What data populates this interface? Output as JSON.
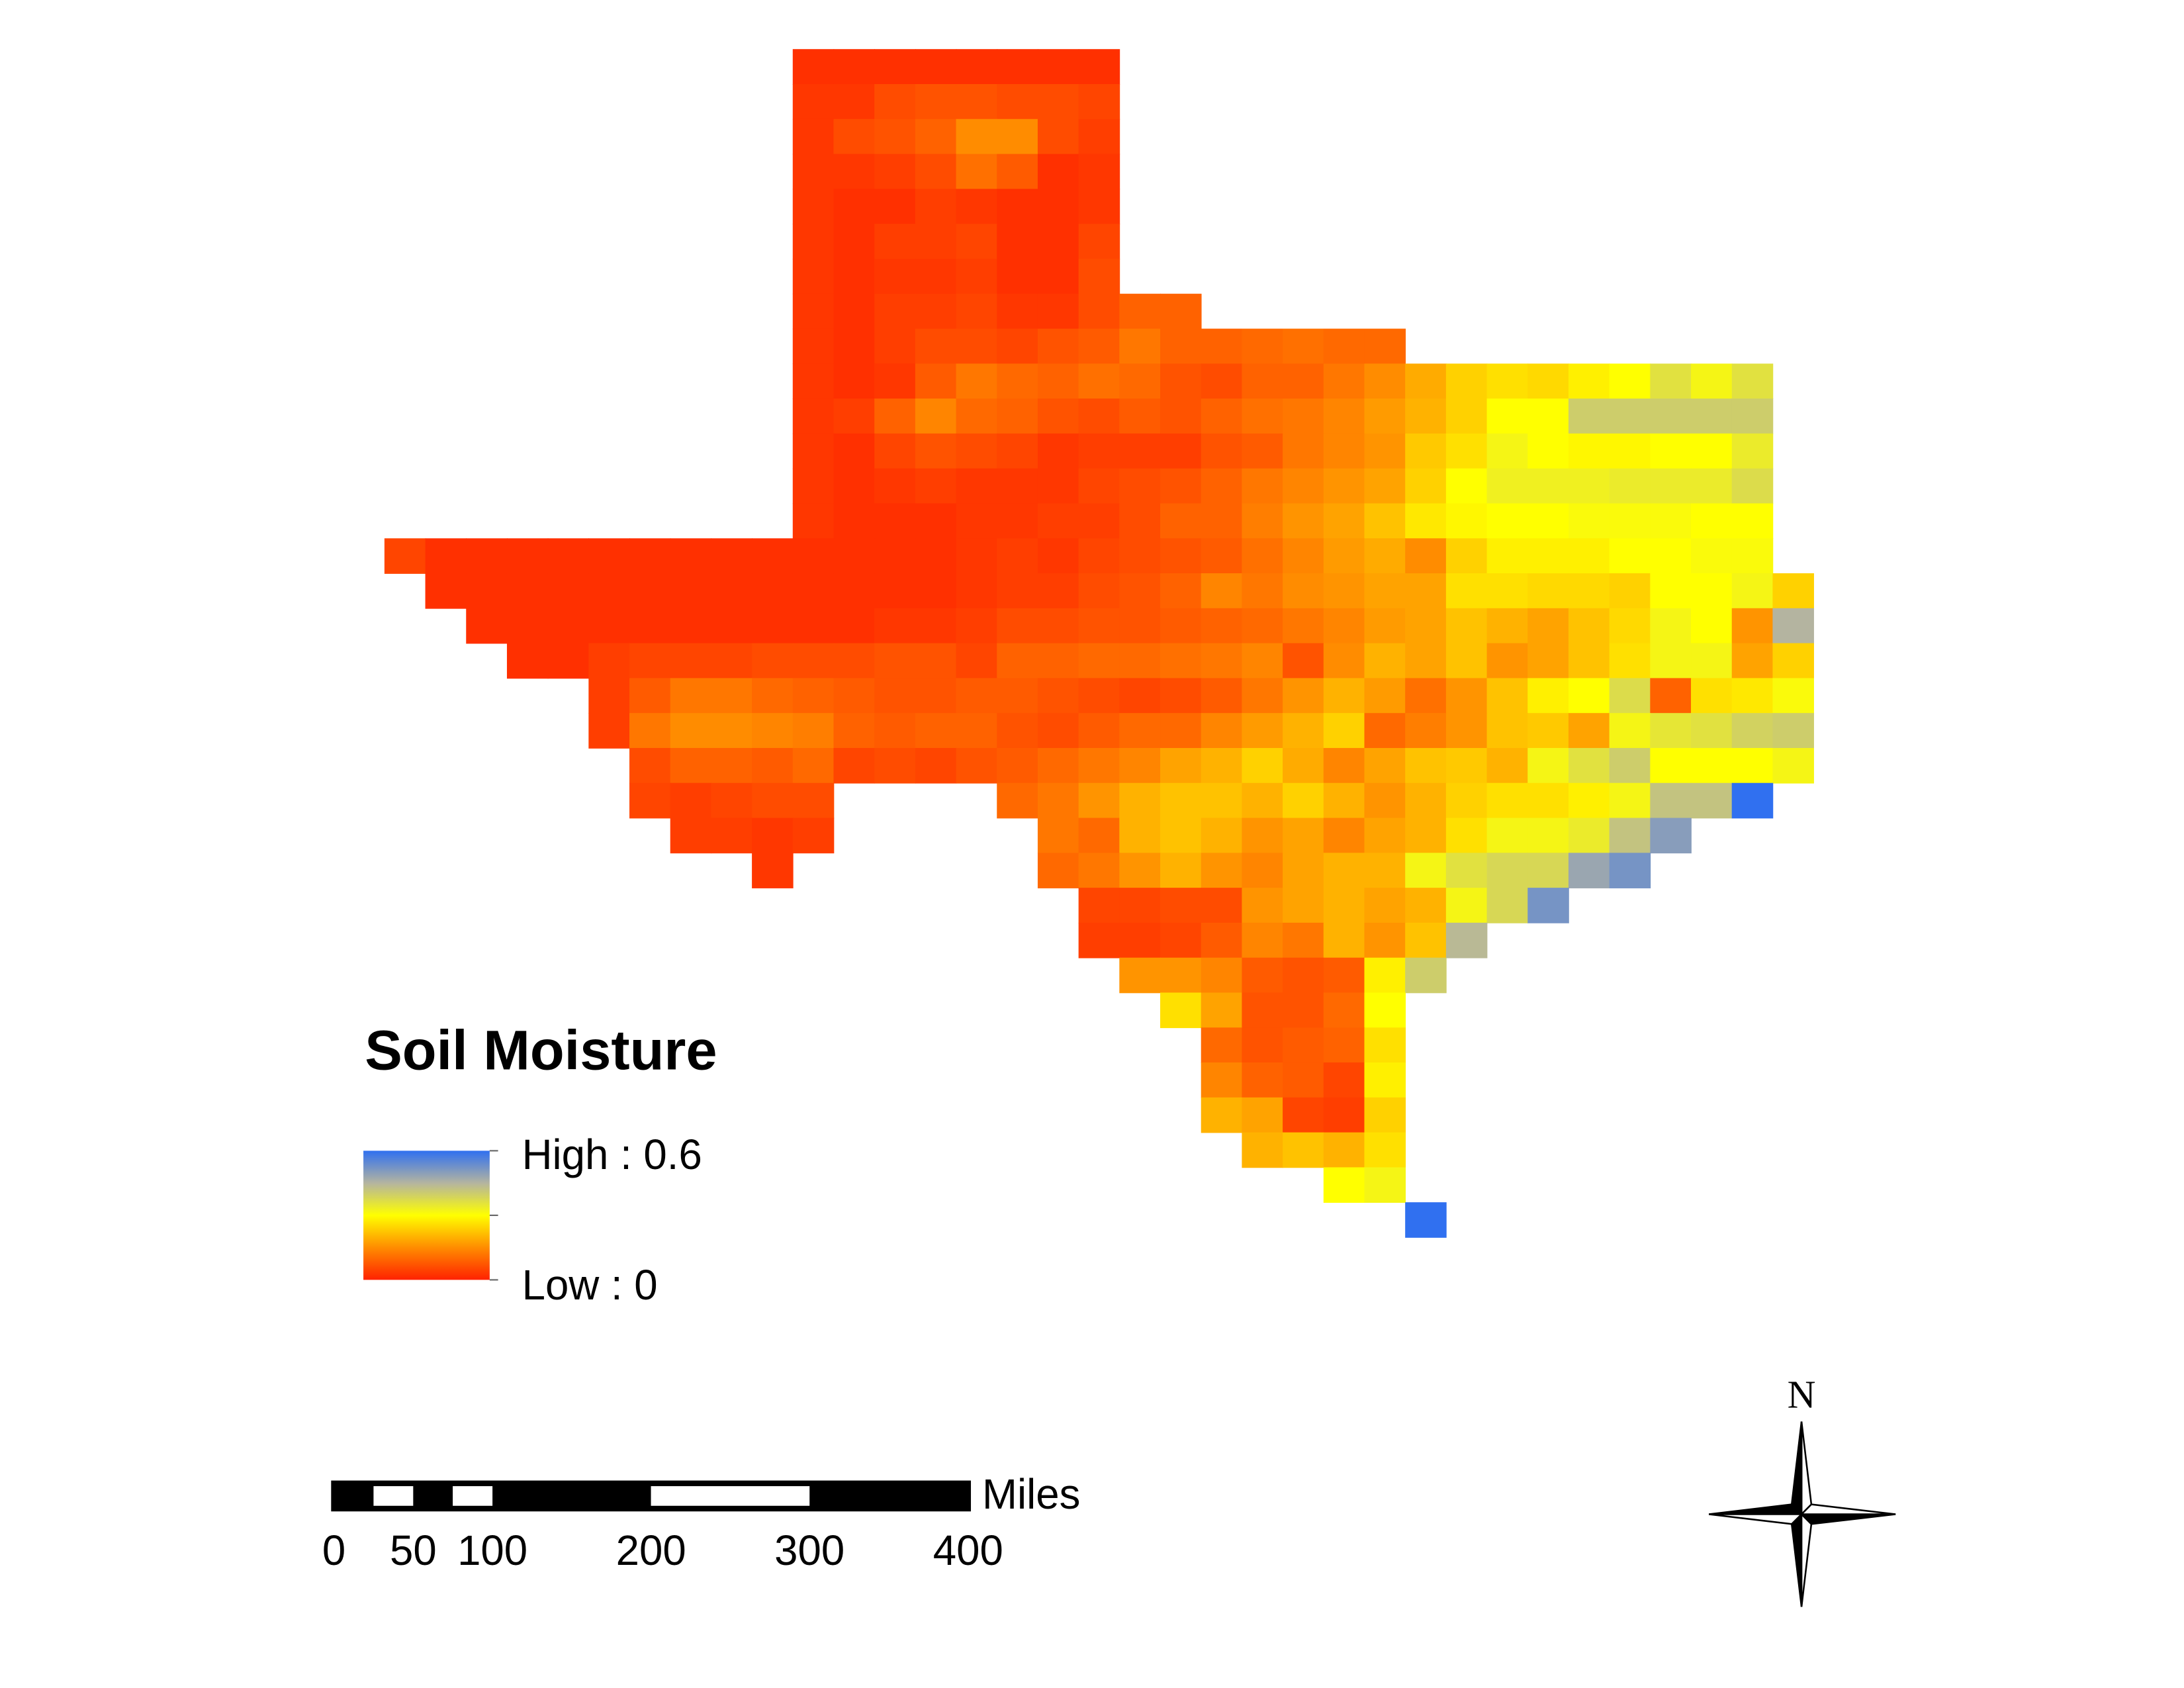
{
  "map": {
    "grid": [
      [
        null,
        null,
        null,
        null,
        null,
        null,
        null,
        null,
        null,
        null,
        0.02,
        0.02,
        0.02,
        0.02,
        0.02,
        0.02,
        0.02,
        0.02,
        null,
        null,
        null,
        null,
        null,
        null,
        null,
        null,
        null,
        null,
        null,
        null,
        null,
        null,
        null,
        null,
        null
      ],
      [
        null,
        null,
        null,
        null,
        null,
        null,
        null,
        null,
        null,
        null,
        0.03,
        0.03,
        0.06,
        0.07,
        0.07,
        0.06,
        0.06,
        0.05,
        null,
        null,
        null,
        null,
        null,
        null,
        null,
        null,
        null,
        null,
        null,
        null,
        null,
        null,
        null,
        null,
        null
      ],
      [
        null,
        null,
        null,
        null,
        null,
        null,
        null,
        null,
        null,
        null,
        0.03,
        0.06,
        0.07,
        0.09,
        0.15,
        0.15,
        0.06,
        0.04,
        null,
        null,
        null,
        null,
        null,
        null,
        null,
        null,
        null,
        null,
        null,
        null,
        null,
        null,
        null,
        null,
        null
      ],
      [
        null,
        null,
        null,
        null,
        null,
        null,
        null,
        null,
        null,
        null,
        0.03,
        0.03,
        0.04,
        0.06,
        0.11,
        0.08,
        0.02,
        0.03,
        null,
        null,
        null,
        null,
        null,
        null,
        null,
        null,
        null,
        null,
        null,
        null,
        null,
        null,
        null,
        null,
        null
      ],
      [
        null,
        null,
        null,
        null,
        null,
        null,
        null,
        null,
        null,
        null,
        0.03,
        0.02,
        0.02,
        0.04,
        0.03,
        0.02,
        0.02,
        0.03,
        null,
        null,
        null,
        null,
        null,
        null,
        null,
        null,
        null,
        null,
        null,
        null,
        null,
        null,
        null,
        null,
        null
      ],
      [
        null,
        null,
        null,
        null,
        null,
        null,
        null,
        null,
        null,
        null,
        0.03,
        0.02,
        0.04,
        0.04,
        0.05,
        0.02,
        0.02,
        0.05,
        null,
        null,
        null,
        null,
        null,
        null,
        null,
        null,
        null,
        null,
        null,
        null,
        null,
        null,
        null,
        null,
        null
      ],
      [
        null,
        null,
        null,
        null,
        null,
        null,
        null,
        null,
        null,
        null,
        0.03,
        0.02,
        0.03,
        0.03,
        0.04,
        0.02,
        0.02,
        0.06,
        null,
        null,
        null,
        null,
        null,
        null,
        null,
        null,
        null,
        null,
        null,
        null,
        null,
        null,
        null,
        null,
        null
      ],
      [
        null,
        null,
        null,
        null,
        null,
        null,
        null,
        null,
        null,
        null,
        0.03,
        0.02,
        0.04,
        0.04,
        0.05,
        0.03,
        0.03,
        0.06,
        0.09,
        0.09,
        null,
        null,
        null,
        null,
        null,
        null,
        null,
        null,
        null,
        null,
        null,
        null,
        null,
        null,
        null
      ],
      [
        null,
        null,
        null,
        null,
        null,
        null,
        null,
        null,
        null,
        null,
        0.03,
        0.02,
        0.04,
        0.06,
        0.06,
        0.05,
        0.07,
        0.08,
        0.12,
        0.09,
        0.09,
        0.1,
        0.11,
        0.1,
        0.1,
        null,
        null,
        null,
        null,
        null,
        null,
        null,
        null,
        null,
        null
      ],
      [
        null,
        null,
        null,
        null,
        null,
        null,
        null,
        null,
        null,
        null,
        0.03,
        0.02,
        0.03,
        0.08,
        0.12,
        0.1,
        0.09,
        0.11,
        0.1,
        0.07,
        0.06,
        0.09,
        0.09,
        0.12,
        0.15,
        0.19,
        0.24,
        0.26,
        0.25,
        0.28,
        0.3,
        0.36,
        0.32,
        0.36,
        null
      ],
      [
        null,
        null,
        null,
        null,
        null,
        null,
        null,
        null,
        null,
        null,
        0.03,
        0.04,
        0.09,
        0.14,
        0.1,
        0.09,
        0.07,
        0.06,
        0.08,
        0.07,
        0.09,
        0.11,
        0.12,
        0.14,
        0.17,
        0.2,
        0.24,
        0.3,
        0.3,
        0.4,
        0.4,
        0.4,
        0.4,
        0.4,
        null
      ],
      [
        null,
        null,
        null,
        null,
        null,
        null,
        null,
        null,
        null,
        null,
        0.03,
        0.02,
        0.05,
        0.07,
        0.06,
        0.05,
        0.03,
        0.04,
        0.04,
        0.04,
        0.07,
        0.08,
        0.12,
        0.14,
        0.16,
        0.23,
        0.26,
        0.32,
        0.3,
        0.29,
        0.29,
        0.3,
        0.3,
        0.34,
        null
      ],
      [
        null,
        null,
        null,
        null,
        null,
        null,
        null,
        null,
        null,
        null,
        0.03,
        0.02,
        0.03,
        0.04,
        0.03,
        0.03,
        0.03,
        0.05,
        0.06,
        0.07,
        0.09,
        0.12,
        0.14,
        0.16,
        0.18,
        0.24,
        0.3,
        0.33,
        0.33,
        0.33,
        0.34,
        0.34,
        0.34,
        0.37,
        null
      ],
      [
        null,
        null,
        null,
        null,
        null,
        null,
        null,
        null,
        null,
        null,
        0.03,
        0.02,
        0.02,
        0.02,
        0.03,
        0.03,
        0.04,
        0.04,
        0.06,
        0.09,
        0.09,
        0.13,
        0.16,
        0.18,
        0.22,
        0.27,
        0.29,
        0.3,
        0.3,
        0.31,
        0.31,
        0.31,
        0.3,
        0.3,
        null
      ],
      [
        0.05,
        0.02,
        0.02,
        0.02,
        0.02,
        0.02,
        0.02,
        0.02,
        0.02,
        0.02,
        0.02,
        0.02,
        0.02,
        0.02,
        0.03,
        0.04,
        0.03,
        0.05,
        0.06,
        0.07,
        0.08,
        0.11,
        0.14,
        0.17,
        0.19,
        0.15,
        0.24,
        0.28,
        0.28,
        0.28,
        0.3,
        0.3,
        0.31,
        0.31,
        null
      ],
      [
        null,
        0.02,
        0.02,
        0.02,
        0.02,
        0.02,
        0.02,
        0.02,
        0.02,
        0.02,
        0.02,
        0.02,
        0.02,
        0.02,
        0.03,
        0.04,
        0.04,
        0.06,
        0.07,
        0.09,
        0.14,
        0.12,
        0.15,
        0.16,
        0.18,
        0.18,
        0.26,
        0.26,
        0.25,
        0.25,
        0.24,
        0.3,
        0.3,
        0.32,
        0.24
      ],
      [
        null,
        null,
        0.02,
        0.02,
        0.02,
        0.02,
        0.02,
        0.02,
        0.02,
        0.02,
        0.02,
        0.02,
        0.03,
        0.03,
        0.04,
        0.06,
        0.06,
        0.07,
        0.07,
        0.08,
        0.09,
        0.1,
        0.12,
        0.14,
        0.17,
        0.18,
        0.22,
        0.2,
        0.18,
        0.22,
        0.25,
        0.32,
        0.3,
        0.16,
        0.45
      ],
      [
        null,
        null,
        null,
        0.02,
        0.02,
        0.04,
        0.05,
        0.05,
        0.05,
        0.06,
        0.06,
        0.06,
        0.07,
        0.07,
        0.05,
        0.09,
        0.09,
        0.1,
        0.1,
        0.11,
        0.12,
        0.14,
        0.07,
        0.15,
        0.2,
        0.18,
        0.22,
        0.16,
        0.18,
        0.22,
        0.26,
        0.32,
        0.32,
        0.18,
        0.24
      ],
      [
        null,
        null,
        null,
        null,
        null,
        0.04,
        0.08,
        0.12,
        0.12,
        0.1,
        0.09,
        0.08,
        0.07,
        0.07,
        0.08,
        0.08,
        0.07,
        0.06,
        0.05,
        0.06,
        0.08,
        0.12,
        0.16,
        0.2,
        0.17,
        0.11,
        0.16,
        0.22,
        0.28,
        0.3,
        0.37,
        0.09,
        0.26,
        0.27,
        0.31
      ],
      [
        null,
        null,
        null,
        null,
        null,
        0.04,
        0.12,
        0.15,
        0.15,
        0.14,
        0.13,
        0.09,
        0.08,
        0.09,
        0.09,
        0.07,
        0.06,
        0.08,
        0.1,
        0.1,
        0.14,
        0.17,
        0.2,
        0.24,
        0.1,
        0.13,
        0.16,
        0.22,
        0.23,
        0.18,
        0.32,
        0.35,
        0.36,
        0.39,
        0.4
      ],
      [
        null,
        null,
        null,
        null,
        null,
        null,
        0.06,
        0.09,
        0.09,
        0.08,
        0.1,
        0.05,
        0.06,
        0.05,
        0.07,
        0.08,
        0.1,
        0.12,
        0.14,
        0.18,
        0.2,
        0.24,
        0.19,
        0.14,
        0.18,
        0.22,
        0.23,
        0.2,
        0.32,
        0.36,
        0.4,
        0.3,
        0.3,
        0.3,
        0.32
      ],
      [
        null,
        null,
        null,
        null,
        null,
        null,
        0.05,
        0.04,
        0.05,
        0.06,
        0.06,
        null,
        null,
        null,
        null,
        0.1,
        0.12,
        0.16,
        0.2,
        0.22,
        0.22,
        0.2,
        0.24,
        0.2,
        0.16,
        0.2,
        0.24,
        0.26,
        0.26,
        0.28,
        0.32,
        0.42,
        0.42,
        0.6,
        null
      ],
      [
        null,
        null,
        null,
        null,
        null,
        null,
        null,
        0.04,
        0.04,
        0.03,
        0.04,
        null,
        null,
        null,
        null,
        null,
        0.12,
        0.1,
        0.2,
        0.22,
        0.2,
        0.16,
        0.18,
        0.14,
        0.18,
        0.2,
        0.26,
        0.32,
        0.32,
        0.34,
        0.42,
        0.5,
        null,
        null,
        null
      ],
      [
        null,
        null,
        null,
        null,
        null,
        null,
        null,
        null,
        null,
        0.03,
        null,
        null,
        null,
        null,
        null,
        null,
        0.1,
        0.12,
        0.16,
        0.2,
        0.16,
        0.14,
        0.18,
        0.2,
        0.2,
        0.32,
        0.36,
        0.38,
        0.38,
        0.48,
        0.52,
        null,
        null,
        null,
        null
      ],
      [
        null,
        null,
        null,
        null,
        null,
        null,
        null,
        null,
        null,
        null,
        null,
        null,
        null,
        null,
        null,
        null,
        null,
        0.05,
        0.05,
        0.06,
        0.06,
        0.16,
        0.18,
        0.2,
        0.18,
        0.2,
        0.32,
        0.38,
        0.52,
        null,
        null,
        null,
        null,
        null,
        null
      ],
      [
        null,
        null,
        null,
        null,
        null,
        null,
        null,
        null,
        null,
        null,
        null,
        null,
        null,
        null,
        null,
        null,
        null,
        0.04,
        0.04,
        0.05,
        0.08,
        0.14,
        0.12,
        0.2,
        0.16,
        0.22,
        0.44,
        null,
        null,
        null,
        null,
        null,
        null,
        null,
        null
      ],
      [
        null,
        null,
        null,
        null,
        null,
        null,
        null,
        null,
        null,
        null,
        null,
        null,
        null,
        null,
        null,
        null,
        null,
        null,
        0.16,
        0.16,
        0.14,
        0.08,
        0.07,
        0.08,
        0.28,
        0.4,
        null,
        null,
        null,
        null,
        null,
        null,
        null,
        null,
        null
      ],
      [
        null,
        null,
        null,
        null,
        null,
        null,
        null,
        null,
        null,
        null,
        null,
        null,
        null,
        null,
        null,
        null,
        null,
        null,
        null,
        0.26,
        0.18,
        0.07,
        0.07,
        0.1,
        0.3,
        null,
        null,
        null,
        null,
        null,
        null,
        null,
        null,
        null,
        null
      ],
      [
        null,
        null,
        null,
        null,
        null,
        null,
        null,
        null,
        null,
        null,
        null,
        null,
        null,
        null,
        null,
        null,
        null,
        null,
        null,
        null,
        0.1,
        0.07,
        0.08,
        0.09,
        0.26,
        null,
        null,
        null,
        null,
        null,
        null,
        null,
        null,
        null,
        null
      ],
      [
        null,
        null,
        null,
        null,
        null,
        null,
        null,
        null,
        null,
        null,
        null,
        null,
        null,
        null,
        null,
        null,
        null,
        null,
        null,
        null,
        0.14,
        0.09,
        0.08,
        0.05,
        0.28,
        null,
        null,
        null,
        null,
        null,
        null,
        null,
        null,
        null,
        null
      ],
      [
        null,
        null,
        null,
        null,
        null,
        null,
        null,
        null,
        null,
        null,
        null,
        null,
        null,
        null,
        null,
        null,
        null,
        null,
        null,
        null,
        0.2,
        0.18,
        0.05,
        0.04,
        0.24,
        null,
        null,
        null,
        null,
        null,
        null,
        null,
        null,
        null,
        null
      ],
      [
        null,
        null,
        null,
        null,
        null,
        null,
        null,
        null,
        null,
        null,
        null,
        null,
        null,
        null,
        null,
        null,
        null,
        null,
        null,
        null,
        null,
        0.2,
        0.22,
        0.2,
        0.26,
        null,
        null,
        null,
        null,
        null,
        null,
        null,
        null,
        null,
        null
      ],
      [
        null,
        null,
        null,
        null,
        null,
        null,
        null,
        null,
        null,
        null,
        null,
        null,
        null,
        null,
        null,
        null,
        null,
        null,
        null,
        null,
        null,
        null,
        null,
        0.3,
        0.32,
        null,
        null,
        null,
        null,
        null,
        null,
        null,
        null,
        null,
        null
      ],
      [
        null,
        null,
        null,
        null,
        null,
        null,
        null,
        null,
        null,
        null,
        null,
        null,
        null,
        null,
        null,
        null,
        null,
        null,
        null,
        null,
        null,
        null,
        null,
        null,
        null,
        0.6,
        null,
        null,
        null,
        null,
        null,
        null,
        null,
        null,
        null
      ]
    ]
  },
  "legend": {
    "title": "Soil Moisture",
    "max": {
      "value": 0.6,
      "label": "High : 0.6"
    },
    "min": {
      "value": 0,
      "label": "Low : 0"
    },
    "colors": [
      "#ff2200",
      "#ff8c00",
      "#ffff00",
      "#b4b4a0",
      "#3070f0"
    ]
  },
  "scale_bar": {
    "ticks": [
      0,
      50,
      100,
      200,
      300,
      400
    ],
    "unit": "Miles"
  },
  "north": "N"
}
